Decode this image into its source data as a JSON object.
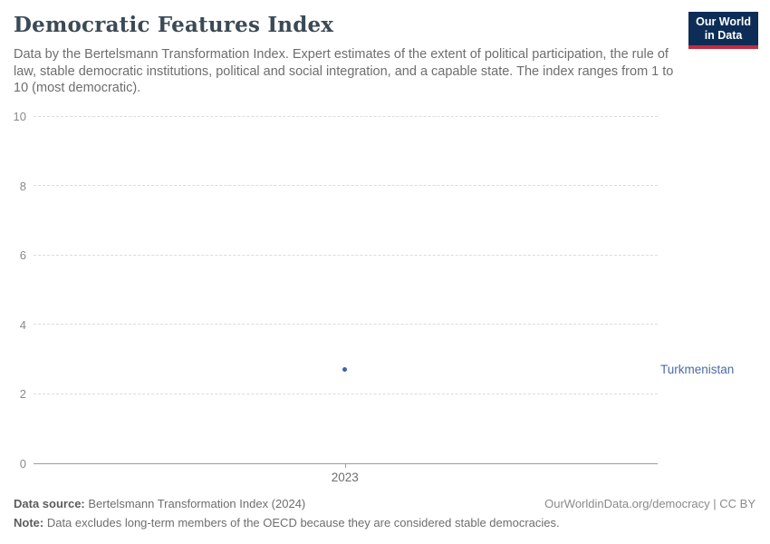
{
  "header": {
    "title": "Democratic Features Index",
    "subtitle": "Data by the Bertelsmann Transformation Index. Expert estimates of the extent of political participation, the rule of law, stable democratic institutions, political and social integration, and a capable state. The index ranges from 1 to 10 (most democratic).",
    "logo": {
      "line1": "Our World",
      "line2": "in Data"
    }
  },
  "chart_data": {
    "type": "scatter",
    "title": "Democratic Features Index",
    "xlabel": "",
    "ylabel": "",
    "x": [
      2023
    ],
    "series": [
      {
        "name": "Turkmenistan",
        "x": [
          2023
        ],
        "values": [
          2.7
        ],
        "color": "#3d63ad",
        "label_color": "#4c6ba5"
      }
    ],
    "ylim": [
      0,
      10
    ],
    "yticks": [
      0,
      2,
      4,
      6,
      8,
      10
    ],
    "xticks": [
      "2023"
    ],
    "grid": "horizontal-dashed",
    "legend_position": "right-entity-label"
  },
  "footer": {
    "source_label": "Data source:",
    "source_text": " Bertelsmann Transformation Index (2024)",
    "attribution": "OurWorldinData.org/democracy | CC BY",
    "note_label": "Note:",
    "note_text": " Data excludes long-term members of the OECD because they are considered stable democracies."
  },
  "colors": {
    "logo_bg": "#0d2d56",
    "logo_stripe": "#c52b40",
    "title_text": "#3b4a55",
    "subtitle_text": "#6e6e6e",
    "gridline": "#dcdcdc",
    "axis_line": "#9d9d9d",
    "tick_text": "#8a8a8a"
  }
}
